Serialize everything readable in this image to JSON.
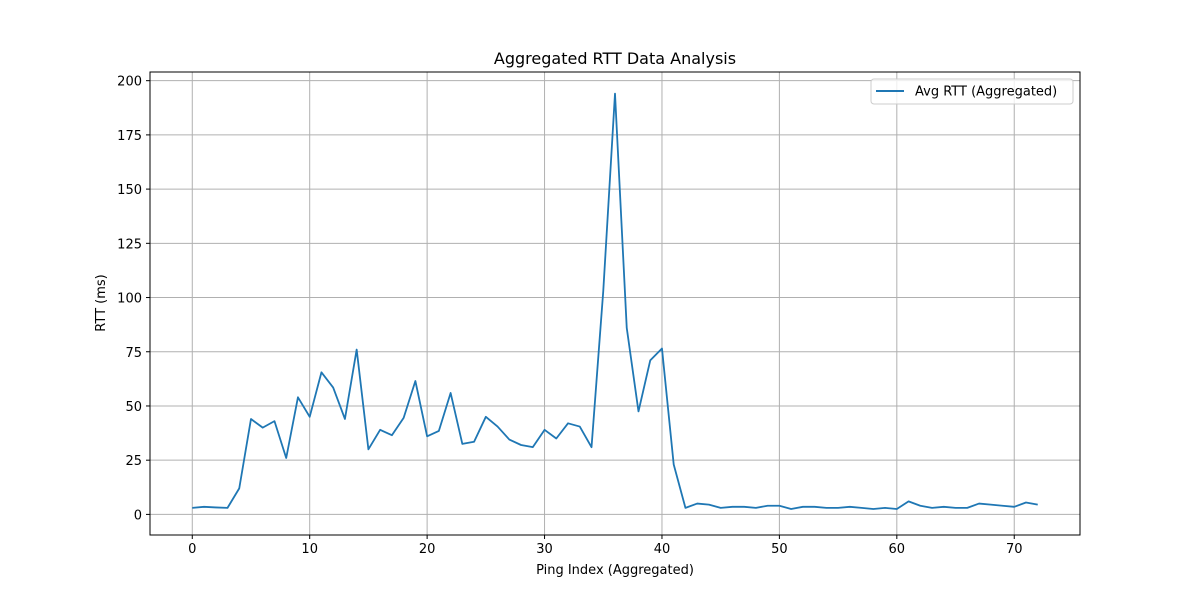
{
  "chart_data": {
    "type": "line",
    "title": "Aggregated RTT Data Analysis",
    "xlabel": "Ping Index (Aggregated)",
    "ylabel": "RTT (ms)",
    "xlim": [
      -3.6,
      75.6
    ],
    "ylim": [
      -9.5,
      204
    ],
    "xticks": [
      0,
      10,
      20,
      30,
      40,
      50,
      60,
      70
    ],
    "yticks": [
      0,
      25,
      50,
      75,
      100,
      125,
      150,
      175,
      200
    ],
    "grid": true,
    "legend_position": "top-right",
    "series": [
      {
        "name": "Avg RTT (Aggregated)",
        "color": "#1f77b4",
        "x": [
          0,
          1,
          2,
          3,
          4,
          5,
          6,
          7,
          8,
          9,
          10,
          11,
          12,
          13,
          14,
          15,
          16,
          17,
          18,
          19,
          20,
          21,
          22,
          23,
          24,
          25,
          26,
          27,
          28,
          29,
          30,
          31,
          32,
          33,
          34,
          35,
          36,
          37,
          38,
          39,
          40,
          41,
          42,
          43,
          44,
          45,
          46,
          47,
          48,
          49,
          50,
          51,
          52,
          53,
          54,
          55,
          56,
          57,
          58,
          59,
          60,
          61,
          62,
          63,
          64,
          65,
          66,
          67,
          68,
          69,
          70,
          71,
          72
        ],
        "values": [
          3,
          3.5,
          3.2,
          3,
          12,
          44,
          40,
          43,
          26,
          54,
          45,
          65.5,
          58.5,
          44,
          76,
          30,
          39,
          36.5,
          44.5,
          61.5,
          36,
          38.5,
          56,
          32.5,
          33.5,
          45,
          40.5,
          34.5,
          32,
          31,
          39,
          35,
          42,
          40.5,
          31,
          103,
          194,
          86,
          47.5,
          71,
          76.5,
          23,
          3,
          5,
          4.5,
          3,
          3.5,
          3.5,
          3,
          4,
          4,
          2.5,
          3.5,
          3.5,
          3,
          3,
          3.5,
          3,
          2.5,
          3,
          2.5,
          6,
          4,
          3,
          3.5,
          3,
          3,
          5,
          4.5,
          4,
          3.5,
          5.5,
          4.5
        ]
      }
    ]
  }
}
